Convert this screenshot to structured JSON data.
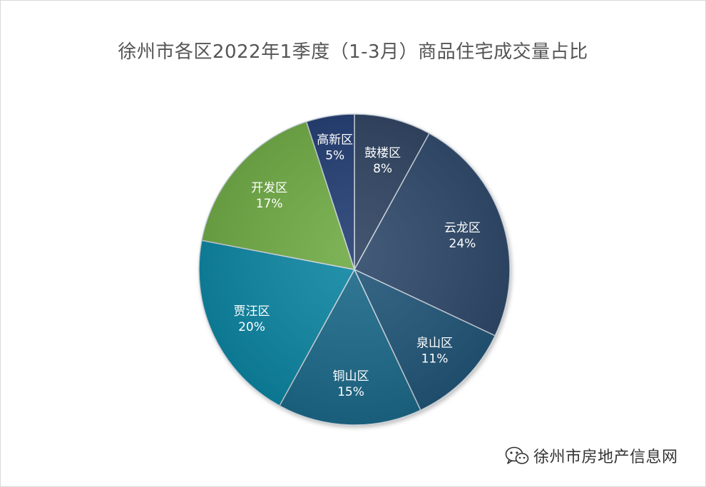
{
  "chart_data": {
    "type": "pie",
    "title": "徐州市各区2022年1季度（1-3月）商品住宅成交量占比",
    "slices": [
      {
        "label": "鼓楼区",
        "value": 8,
        "display": "8%",
        "color": "#2f4360"
      },
      {
        "label": "云龙区",
        "value": 24,
        "display": "24%",
        "color": "#2e4a6b"
      },
      {
        "label": "泉山区",
        "value": 11,
        "display": "11%",
        "color": "#235779"
      },
      {
        "label": "铜山区",
        "value": 15,
        "display": "15%",
        "color": "#1a6a8a"
      },
      {
        "label": "贾汪区",
        "value": 20,
        "display": "20%",
        "color": "#0f86a3"
      },
      {
        "label": "开发区",
        "value": 17,
        "display": "17%",
        "color": "#70ab44"
      },
      {
        "label": "高新区",
        "value": 5,
        "display": "5%",
        "color": "#223d72"
      }
    ],
    "start_angle_deg": 0,
    "direction": "clockwise",
    "label_color": "#ffffff"
  },
  "watermark": {
    "icon": "wechat-icon",
    "text": "徐州市房地产信息网"
  }
}
